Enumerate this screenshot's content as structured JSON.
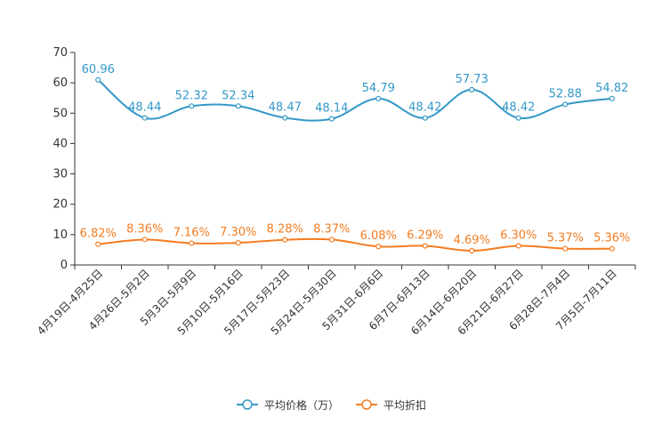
{
  "chart_data": {
    "type": "line",
    "categories": [
      "4月19日-4月25日",
      "4月26日-5月2日",
      "5月3日-5月9日",
      "5月10日-5月16日",
      "5月17日-5月23日",
      "5月24日-5月30日",
      "5月31日-6月6日",
      "6月7日-6月13日",
      "6月14日-6月20日",
      "6月21日-6月27日",
      "6月28日-7月4日",
      "7月5日-7月11日"
    ],
    "ylim": [
      0,
      70
    ],
    "yticks": [
      0,
      10,
      20,
      30,
      40,
      50,
      60,
      70
    ],
    "series": [
      {
        "name": "平均价格（万）",
        "color": "#3398c8",
        "values": [
          60.96,
          48.44,
          52.32,
          52.34,
          48.47,
          48.14,
          54.79,
          48.42,
          57.73,
          48.42,
          52.88,
          54.82
        ],
        "labels": [
          "60.96",
          "48.44",
          "52.32",
          "52.34",
          "48.47",
          "48.14",
          "54.79",
          "48.42",
          "57.73",
          "48.42",
          "52.88",
          "54.82"
        ]
      },
      {
        "name": "平均折扣",
        "color": "#f47c20",
        "values": [
          6.82,
          8.36,
          7.16,
          7.3,
          8.28,
          8.37,
          6.08,
          6.29,
          4.69,
          6.3,
          5.37,
          5.36
        ],
        "labels": [
          "6.82%",
          "8.36%",
          "7.16%",
          "7.30%",
          "8.28%",
          "8.37%",
          "6.08%",
          "6.29%",
          "4.69%",
          "6.30%",
          "5.37%",
          "5.36%"
        ]
      }
    ],
    "legend_position": "bottom-center"
  }
}
